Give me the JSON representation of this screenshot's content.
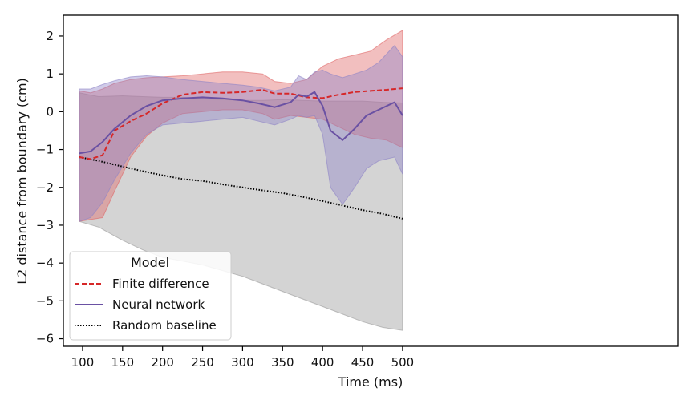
{
  "chart_data": {
    "type": "line",
    "xlabel": "Time (ms)",
    "ylabel": "L2 distance from boundary (cm)",
    "xlim": [
      76,
      844
    ],
    "ylim": [
      -6.2,
      2.55
    ],
    "xticks": [
      100,
      150,
      200,
      250,
      300,
      350,
      400,
      450,
      500
    ],
    "yticks": [
      2,
      1,
      0,
      -1,
      -2,
      -3,
      -4,
      -5,
      -6
    ],
    "ytick_labels": [
      "2",
      "1",
      "0",
      "−1",
      "−2",
      "−3",
      "−4",
      "−5",
      "−6"
    ],
    "grid": false,
    "legend": {
      "title": "Model",
      "placement": "lower-left",
      "entries": [
        {
          "label": "Finite difference",
          "color": "#d62728",
          "style": "dashed"
        },
        {
          "label": "Neural network",
          "color": "#6a51a3",
          "style": "solid"
        },
        {
          "label": "Random baseline",
          "color": "#000000",
          "style": "dotted"
        }
      ]
    },
    "series": [
      {
        "name": "Random baseline",
        "color": "#000000",
        "band_color": "#999999",
        "style": "dotted",
        "x": [
          96,
          120,
          150,
          175,
          200,
          225,
          250,
          275,
          300,
          325,
          350,
          375,
          400,
          425,
          450,
          475,
          500
        ],
        "y": [
          -1.2,
          -1.3,
          -1.45,
          -1.57,
          -1.68,
          -1.78,
          -1.83,
          -1.92,
          -2.0,
          -2.08,
          -2.15,
          -2.25,
          -2.36,
          -2.48,
          -2.6,
          -2.7,
          -2.83
        ],
        "upper": [
          0.5,
          0.4,
          0.42,
          0.4,
          0.38,
          0.38,
          0.35,
          0.32,
          0.3,
          0.3,
          0.32,
          0.3,
          0.28,
          0.28,
          0.28,
          0.25,
          0.23
        ],
        "lower": [
          -2.9,
          -3.05,
          -3.4,
          -3.65,
          -3.85,
          -3.95,
          -4.05,
          -4.2,
          -4.35,
          -4.55,
          -4.75,
          -4.95,
          -5.15,
          -5.35,
          -5.55,
          -5.7,
          -5.78
        ]
      },
      {
        "name": "Finite difference",
        "color": "#d62728",
        "band_color": "#e06666",
        "style": "dashed",
        "x": [
          96,
          110,
          125,
          140,
          160,
          180,
          200,
          225,
          250,
          275,
          300,
          325,
          340,
          360,
          380,
          400,
          420,
          440,
          460,
          480,
          500
        ],
        "y": [
          -1.2,
          -1.25,
          -1.15,
          -0.5,
          -0.25,
          -0.05,
          0.22,
          0.45,
          0.52,
          0.5,
          0.52,
          0.58,
          0.48,
          0.48,
          0.38,
          0.36,
          0.45,
          0.52,
          0.55,
          0.58,
          0.62
        ],
        "upper": [
          0.55,
          0.5,
          0.6,
          0.75,
          0.85,
          0.9,
          0.92,
          0.95,
          1.0,
          1.05,
          1.05,
          1.0,
          0.8,
          0.75,
          0.85,
          1.2,
          1.4,
          1.5,
          1.6,
          1.9,
          2.15
        ],
        "lower": [
          -2.9,
          -2.85,
          -2.8,
          -2.1,
          -1.2,
          -0.65,
          -0.3,
          -0.05,
          0.0,
          0.05,
          0.05,
          -0.05,
          -0.2,
          -0.1,
          -0.15,
          -0.2,
          -0.4,
          -0.6,
          -0.7,
          -0.75,
          -0.95
        ]
      },
      {
        "name": "Neural network",
        "color": "#6a51a3",
        "band_color": "#8e83c7",
        "style": "solid",
        "x": [
          96,
          110,
          125,
          140,
          160,
          180,
          200,
          225,
          250,
          275,
          300,
          320,
          340,
          360,
          370,
          380,
          390,
          400,
          410,
          425,
          440,
          455,
          470,
          490,
          500
        ],
        "y": [
          -1.1,
          -1.05,
          -0.8,
          -0.45,
          -0.1,
          0.15,
          0.3,
          0.35,
          0.38,
          0.35,
          0.3,
          0.22,
          0.12,
          0.25,
          0.45,
          0.4,
          0.52,
          0.15,
          -0.5,
          -0.75,
          -0.45,
          -0.1,
          0.05,
          0.25,
          -0.1
        ],
        "upper": [
          0.6,
          0.6,
          0.72,
          0.82,
          0.92,
          0.95,
          0.92,
          0.85,
          0.8,
          0.75,
          0.7,
          0.65,
          0.55,
          0.65,
          0.95,
          0.85,
          1.05,
          1.1,
          1.0,
          0.9,
          1.0,
          1.1,
          1.3,
          1.75,
          1.45
        ],
        "lower": [
          -2.9,
          -2.8,
          -2.4,
          -1.8,
          -1.1,
          -0.6,
          -0.35,
          -0.3,
          -0.25,
          -0.2,
          -0.15,
          -0.25,
          -0.35,
          -0.2,
          -0.1,
          -0.15,
          -0.1,
          -0.6,
          -2.0,
          -2.45,
          -2.0,
          -1.5,
          -1.3,
          -1.2,
          -1.65
        ]
      }
    ]
  }
}
